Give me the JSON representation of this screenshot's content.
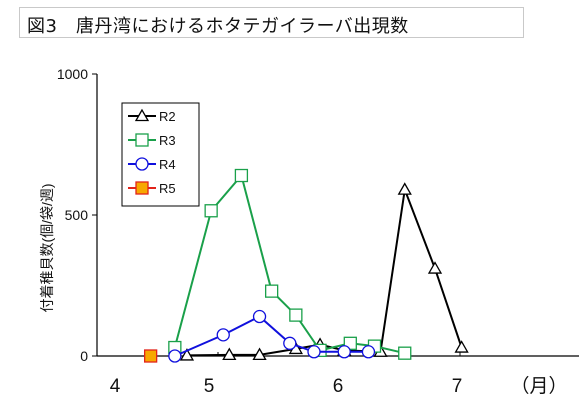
{
  "title": "図3　唐丹湾におけるホタテガイラーバ出現数",
  "chart_data": {
    "type": "line",
    "title": "図3　唐丹湾におけるホタテガイラーバ出現数",
    "ylabel": "付着稚貝数(個/袋/週)",
    "xlabel": "（月）",
    "xlim": [
      4.0,
      8.0
    ],
    "ylim": [
      0,
      1000
    ],
    "x_ticks": [
      4,
      5,
      6,
      7
    ],
    "x_tick_labels": [
      "4",
      "5",
      "6",
      "7"
    ],
    "y_ticks": [
      0,
      500,
      1000
    ],
    "y_tick_labels": [
      "0",
      "500",
      "1000"
    ],
    "legend_position": "top-left",
    "series": [
      {
        "name": "R2",
        "color": "#000000",
        "marker": "triangle",
        "marker_fill": "#ffffff",
        "points": [
          [
            4.95,
            2
          ],
          [
            5.3,
            4
          ],
          [
            5.55,
            4
          ],
          [
            5.85,
            25
          ],
          [
            6.05,
            40
          ],
          [
            6.25,
            20
          ],
          [
            6.55,
            15
          ],
          [
            6.75,
            590
          ],
          [
            7.0,
            310
          ],
          [
            7.22,
            30
          ]
        ]
      },
      {
        "name": "R3",
        "color": "#1aa04a",
        "marker": "square",
        "marker_fill": "#ffffff",
        "points": [
          [
            4.85,
            30
          ],
          [
            5.15,
            515
          ],
          [
            5.4,
            640
          ],
          [
            5.65,
            230
          ],
          [
            5.85,
            145
          ],
          [
            6.05,
            20
          ],
          [
            6.3,
            45
          ],
          [
            6.5,
            35
          ],
          [
            6.75,
            10
          ]
        ]
      },
      {
        "name": "R4",
        "color": "#1010dd",
        "marker": "circle",
        "marker_fill": "#ffffff",
        "points": [
          [
            4.85,
            0
          ],
          [
            5.25,
            75
          ],
          [
            5.55,
            140
          ],
          [
            5.8,
            45
          ],
          [
            6.0,
            15
          ],
          [
            6.25,
            15
          ],
          [
            6.45,
            15
          ]
        ]
      },
      {
        "name": "R5",
        "color": "#e2231a",
        "marker": "square",
        "marker_fill": "#f7a800",
        "points": [
          [
            4.65,
            0
          ]
        ]
      }
    ]
  }
}
